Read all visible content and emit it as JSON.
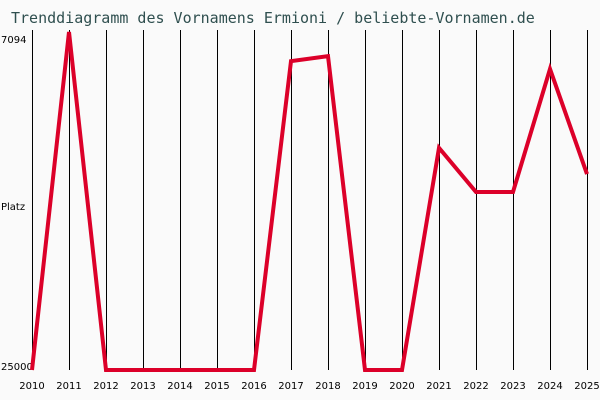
{
  "title": "Trenddiagramm des Vornamens Ermioni / beliebte-Vornamen.de",
  "axis": {
    "y_top_label": "7094",
    "y_mid_label": "Platz",
    "y_bottom_label": "25000"
  },
  "colors": {
    "line": "#dc0029",
    "grid": "#000000",
    "background": "#fafafa",
    "title": "#2f4f4f"
  },
  "chart_data": {
    "type": "line",
    "title": "Trenddiagramm des Vornamens Ermioni / beliebte-Vornamen.de",
    "xlabel": "",
    "ylabel": "Platz",
    "categories": [
      "2010",
      "2011",
      "2012",
      "2013",
      "2014",
      "2015",
      "2016",
      "2017",
      "2018",
      "2019",
      "2020",
      "2021",
      "2022",
      "2023",
      "2024",
      "2025"
    ],
    "series": [
      {
        "name": "Ermioni",
        "values": [
          25000,
          6660,
          25000,
          25000,
          25000,
          25000,
          25000,
          8240,
          7970,
          25000,
          25000,
          12950,
          15340,
          15340,
          8670,
          14370
        ]
      }
    ],
    "ylim": [
      25000,
      7094
    ],
    "y_inverted": true,
    "grid": "vertical lines at each year",
    "legend": "none"
  }
}
